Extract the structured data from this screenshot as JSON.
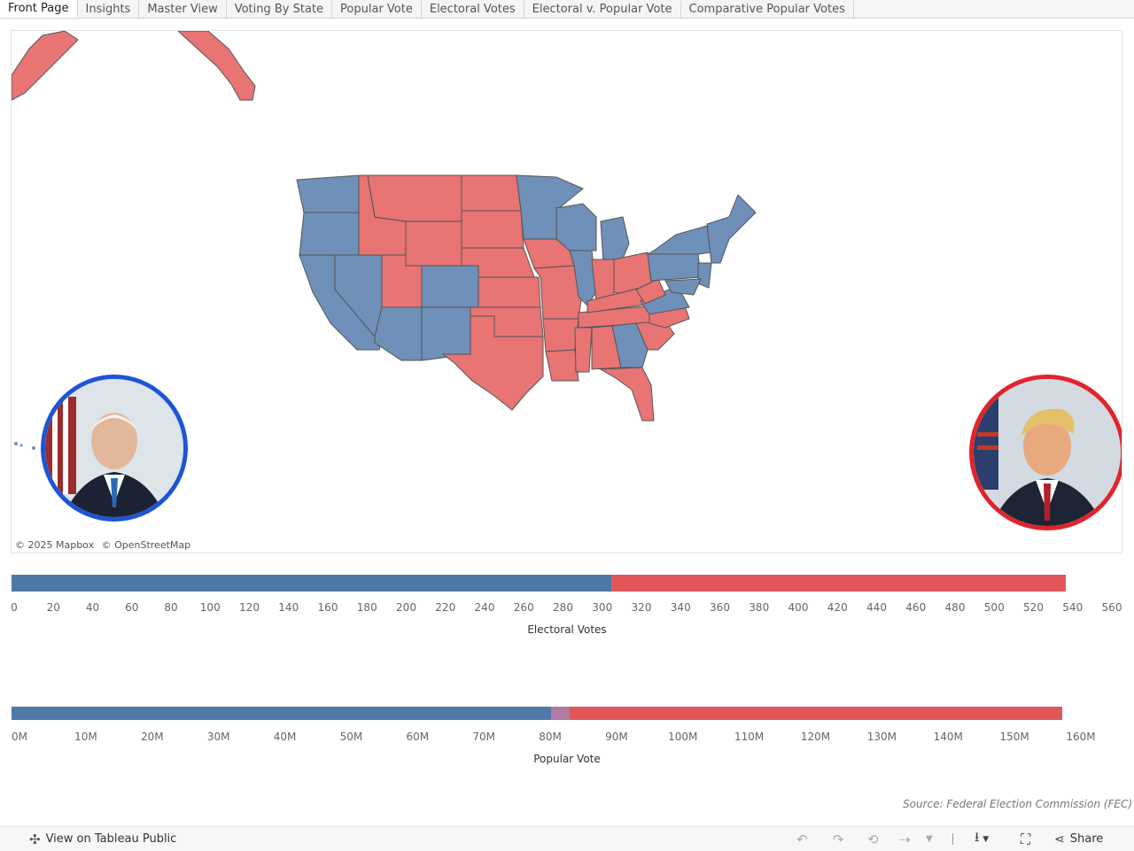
{
  "tabs": [
    {
      "label": "Front Page",
      "active": true
    },
    {
      "label": "Insights"
    },
    {
      "label": "Master View"
    },
    {
      "label": "Voting By State"
    },
    {
      "label": "Popular Vote"
    },
    {
      "label": "Electoral Votes"
    },
    {
      "label": "Electoral v. Popular Vote"
    },
    {
      "label": "Comparative Popular Votes"
    }
  ],
  "map": {
    "attribution": [
      "© 2025 Mapbox",
      "© OpenStreetMap"
    ],
    "colors": {
      "democrat": "#6f90b8",
      "republican": "#e87474",
      "border": "#555555"
    }
  },
  "electoral_chart": {
    "title": "Electoral Votes",
    "ticks": [
      "0",
      "20",
      "40",
      "60",
      "80",
      "100",
      "120",
      "140",
      "160",
      "180",
      "200",
      "220",
      "240",
      "260",
      "280",
      "300",
      "320",
      "340",
      "360",
      "380",
      "400",
      "420",
      "440",
      "460",
      "480",
      "500",
      "520",
      "540",
      "560"
    ],
    "axis_max": 560,
    "segments": [
      {
        "party": "democrat",
        "value": 306,
        "color": "#4e79a7"
      },
      {
        "party": "republican",
        "value": 232,
        "color": "#e15759"
      }
    ]
  },
  "popular_chart": {
    "title": "Popular Vote",
    "ticks": [
      "0M",
      "10M",
      "20M",
      "30M",
      "40M",
      "50M",
      "60M",
      "70M",
      "80M",
      "90M",
      "100M",
      "110M",
      "120M",
      "130M",
      "140M",
      "150M",
      "160M"
    ],
    "axis_max": 160,
    "segments": [
      {
        "party": "democrat",
        "value": 81.3,
        "color": "#4e79a7"
      },
      {
        "party": "other",
        "value": 2.9,
        "color": "#b07aa1"
      },
      {
        "party": "republican",
        "value": 74.2,
        "color": "#e15759"
      }
    ]
  },
  "source": "Source: Federal Election Commission (FEC)",
  "toolbar": {
    "view_label": "View on Tableau Public",
    "share_label": "Share"
  }
}
